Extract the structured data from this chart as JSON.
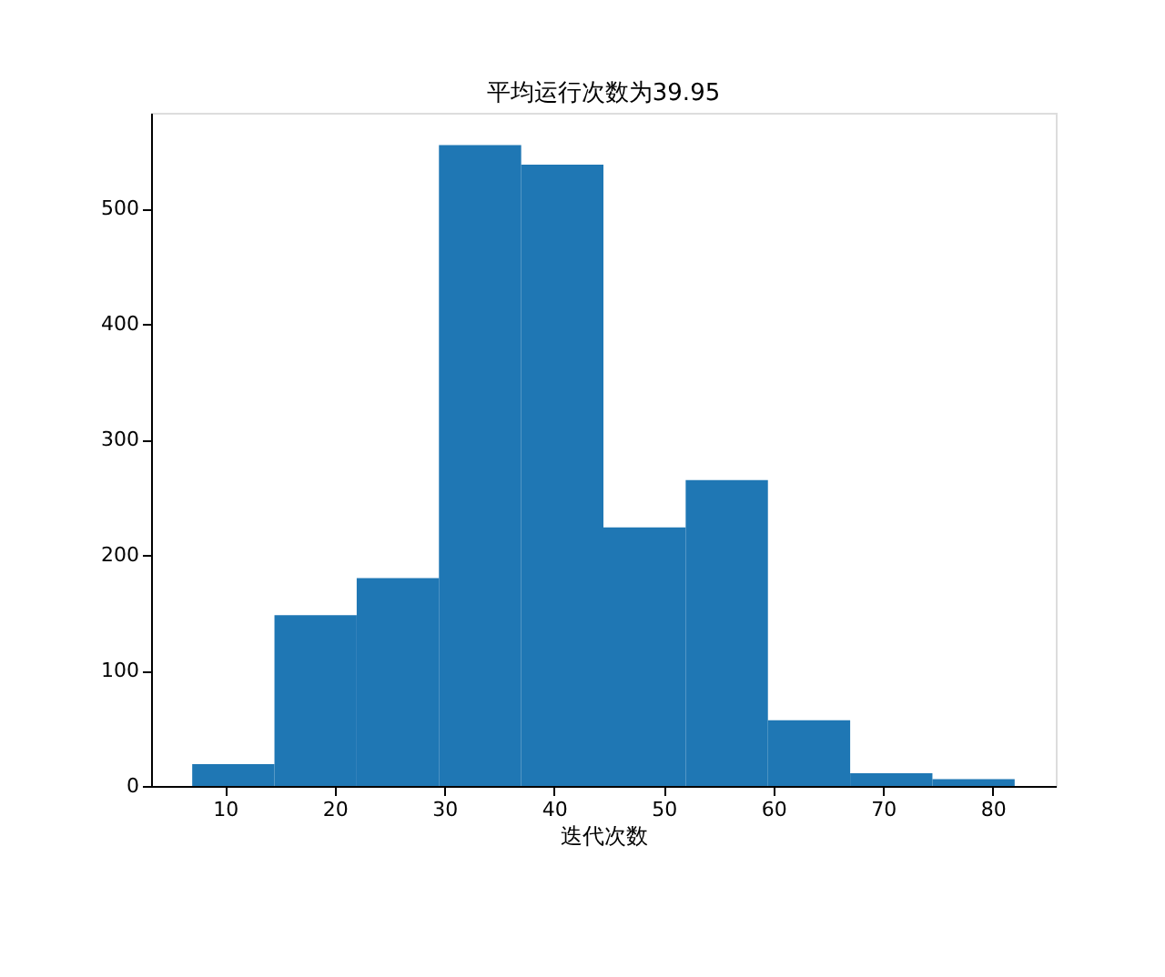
{
  "chart_data": {
    "type": "histogram",
    "title": "平均运行次数为39.95",
    "xlabel": "迭代次数",
    "bins": [
      7,
      14.5,
      22,
      29.5,
      37,
      44.5,
      52,
      59.5,
      67,
      74.5,
      82
    ],
    "values": [
      19,
      148,
      180,
      555,
      538,
      224,
      265,
      57,
      11,
      6
    ],
    "color": "#1f77b4",
    "xlim": [
      3.25,
      85.75
    ],
    "xticks": [
      10,
      20,
      30,
      40,
      50,
      60,
      70,
      80
    ],
    "ylim": [
      0,
      583
    ],
    "yticks": [
      0,
      100,
      200,
      300,
      400,
      500
    ],
    "grid": false
  }
}
